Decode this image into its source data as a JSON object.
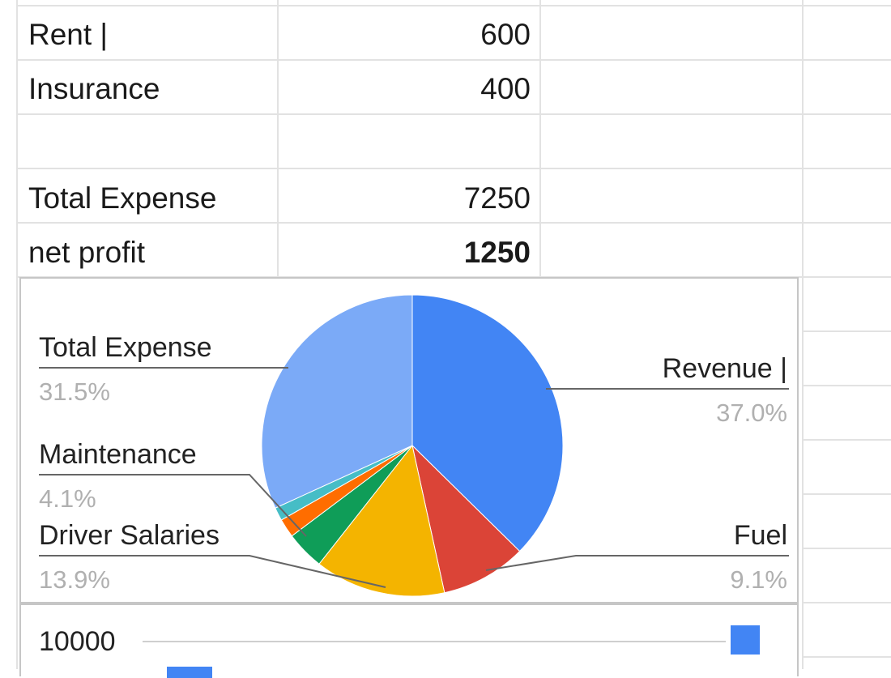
{
  "sheet": {
    "rows": [
      {
        "label": "Rent |",
        "value": "600",
        "bold": false
      },
      {
        "label": "Insurance",
        "value": "400",
        "bold": false
      },
      {
        "label": "",
        "value": "",
        "bold": false
      },
      {
        "label": "Total Expense",
        "value": "7250",
        "bold": false
      },
      {
        "label": "net profit",
        "value": "1250",
        "bold": true
      }
    ]
  },
  "pie_chart": {
    "labels": {
      "total_expense": {
        "name": "Total Expense",
        "pct": "31.5%"
      },
      "maintenance": {
        "name": "Maintenance",
        "pct": "4.1%"
      },
      "driver_salaries": {
        "name": "Driver Salaries",
        "pct": "13.9%"
      },
      "revenue": {
        "name": "Revenue |",
        "pct": "37.0%"
      },
      "fuel": {
        "name": "Fuel",
        "pct": "9.1%"
      }
    }
  },
  "chart_data": [
    {
      "type": "pie",
      "title": "",
      "slices": [
        {
          "name": "Revenue |",
          "percent": 37.0,
          "color": "#4285f4"
        },
        {
          "name": "Fuel",
          "percent": 9.1,
          "color": "#db4437"
        },
        {
          "name": "Driver Salaries",
          "percent": 13.9,
          "color": "#f4b400"
        },
        {
          "name": "Maintenance",
          "percent": 4.1,
          "color": "#0f9d58"
        },
        {
          "name": "",
          "percent": 2.0,
          "color": "#ff6d00"
        },
        {
          "name": "",
          "percent": 1.4,
          "color": "#46bdc6"
        },
        {
          "name": "Total Expense",
          "percent": 31.5,
          "color": "#7baaf7"
        }
      ]
    },
    {
      "type": "bar",
      "title": "",
      "y_ticks": [
        "10000"
      ],
      "legend_color": "#4285f4"
    }
  ],
  "colors": {
    "blue": "#4285f4",
    "light_blue": "#7baaf7",
    "red": "#db4437",
    "yellow": "#f4b400",
    "green": "#0f9d58",
    "orange": "#ff6d00",
    "teal": "#46bdc6"
  }
}
